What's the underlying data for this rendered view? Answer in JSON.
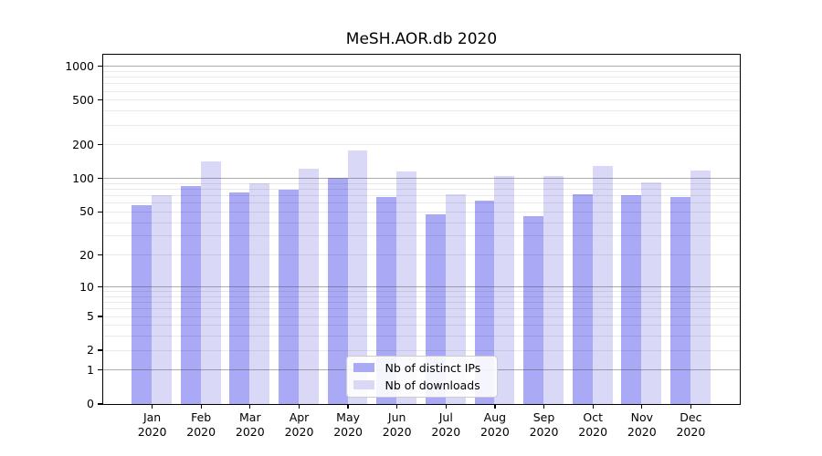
{
  "title": "MeSH.AOR.db 2020",
  "chart_data": {
    "type": "bar",
    "title": "MeSH.AOR.db 2020",
    "x_categories": [
      "Jan",
      "Feb",
      "Mar",
      "Apr",
      "May",
      "Jun",
      "Jul",
      "Aug",
      "Sep",
      "Oct",
      "Nov",
      "Dec"
    ],
    "x_category_sublabel": "2020",
    "series": [
      {
        "name": "Nb of distinct IPs",
        "color": "#a9a9f5",
        "values": [
          57,
          84,
          74,
          78,
          100,
          67,
          47,
          63,
          45,
          71,
          70,
          67
        ]
      },
      {
        "name": "Nb of downloads",
        "color": "#d9d9f7",
        "values": [
          70,
          142,
          90,
          120,
          178,
          115,
          71,
          105,
          104,
          128,
          91,
          117
        ]
      }
    ],
    "ytick_labels": [
      "0",
      "1",
      "2",
      "5",
      "10",
      "20",
      "50",
      "100",
      "200",
      "500",
      "1000"
    ],
    "major_grid_values": [
      1,
      10,
      100,
      1000
    ],
    "y_scale": "symlog",
    "ylim": [
      0,
      1000
    ],
    "grid": true,
    "legend_position": "lower center",
    "xlabel": "",
    "ylabel": ""
  },
  "colors": {
    "background": "#ffffff",
    "bar_distinct_ips": "#a9a9f5",
    "bar_downloads": "#d9d9f7",
    "major_gridline": "#b3b3b3",
    "minor_gridline": "#e9e9e9",
    "axis": "#000000",
    "legend_border": "#cccccc"
  }
}
